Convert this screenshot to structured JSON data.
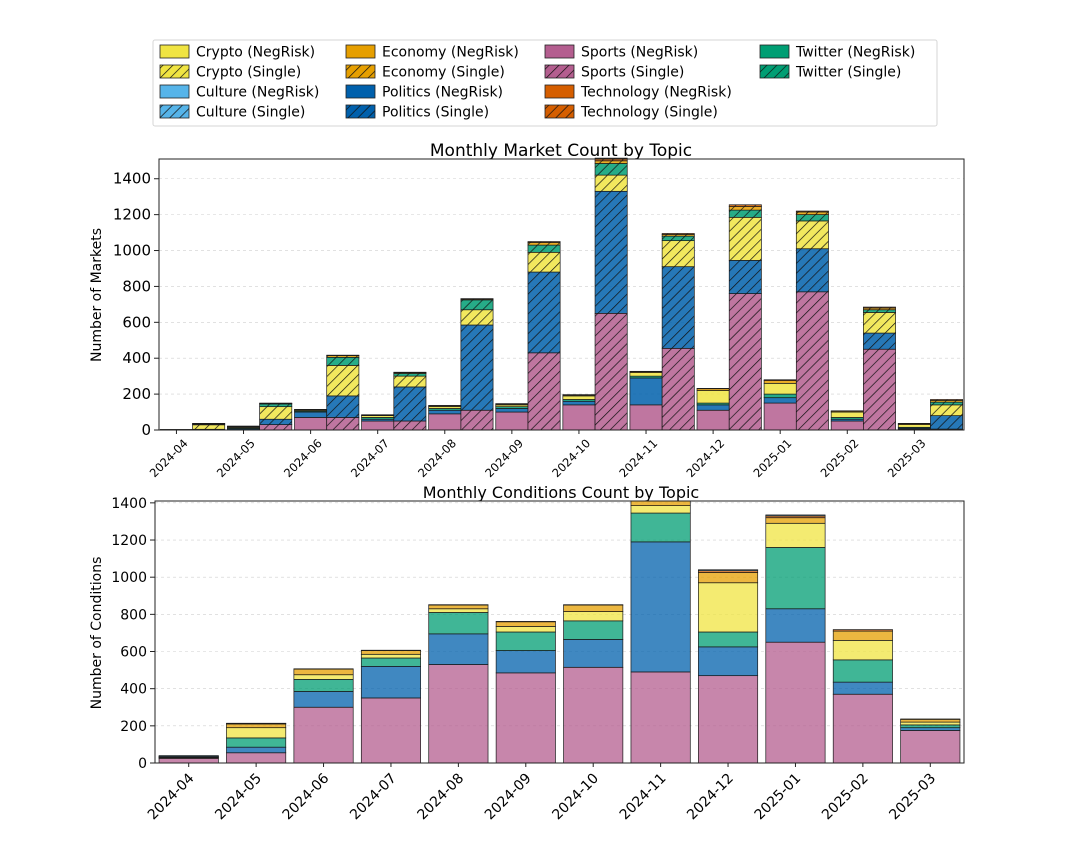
{
  "colors": {
    "crypto": "#F0E442",
    "culture": "#56B4E9",
    "economy": "#E69F00",
    "politics": "#0060AC",
    "sports": "#B45E8F",
    "technology": "#D55E00",
    "twitter": "#009E73"
  },
  "legend": [
    {
      "label": "Crypto (NegRisk)",
      "topic": "crypto",
      "hatch": false
    },
    {
      "label": "Crypto (Single)",
      "topic": "crypto",
      "hatch": true
    },
    {
      "label": "Culture (NegRisk)",
      "topic": "culture",
      "hatch": false
    },
    {
      "label": "Culture (Single)",
      "topic": "culture",
      "hatch": true
    },
    {
      "label": "Economy (NegRisk)",
      "topic": "economy",
      "hatch": false
    },
    {
      "label": "Economy (Single)",
      "topic": "economy",
      "hatch": true
    },
    {
      "label": "Politics (NegRisk)",
      "topic": "politics",
      "hatch": false
    },
    {
      "label": "Politics (Single)",
      "topic": "politics",
      "hatch": true
    },
    {
      "label": "Sports (NegRisk)",
      "topic": "sports",
      "hatch": false
    },
    {
      "label": "Sports (Single)",
      "topic": "sports",
      "hatch": true
    },
    {
      "label": "Technology (NegRisk)",
      "topic": "technology",
      "hatch": false
    },
    {
      "label": "Technology (Single)",
      "topic": "technology",
      "hatch": true
    },
    {
      "label": "Twitter (NegRisk)",
      "topic": "twitter",
      "hatch": false
    },
    {
      "label": "Twitter (Single)",
      "topic": "twitter",
      "hatch": true
    }
  ],
  "chart_data": [
    {
      "type": "bar",
      "stacked": true,
      "grouped": [
        "NegRisk",
        "Single"
      ],
      "title": "Monthly Market Count by Topic",
      "xlabel": "",
      "ylabel": "Number of Markets",
      "ylim": [
        0,
        1510
      ],
      "yticks": [
        0,
        200,
        400,
        600,
        800,
        1000,
        1200,
        1400
      ],
      "categories": [
        "2024-04",
        "2024-05",
        "2024-06",
        "2024-07",
        "2024-08",
        "2024-09",
        "2024-10",
        "2024-11",
        "2024-12",
        "2025-01",
        "2025-02",
        "2025-03"
      ],
      "series": [
        {
          "name": "Sports (NegRisk)",
          "topic": "sports",
          "group": "NegRisk",
          "values": [
            0,
            2,
            70,
            50,
            90,
            100,
            140,
            140,
            110,
            150,
            50,
            5
          ]
        },
        {
          "name": "Politics (NegRisk)",
          "topic": "politics",
          "group": "NegRisk",
          "values": [
            2,
            5,
            30,
            10,
            20,
            20,
            20,
            150,
            30,
            30,
            10,
            5
          ]
        },
        {
          "name": "Twitter (NegRisk)",
          "topic": "twitter",
          "group": "NegRisk",
          "values": [
            0,
            5,
            5,
            10,
            10,
            10,
            10,
            10,
            10,
            20,
            10,
            5
          ]
        },
        {
          "name": "Crypto (NegRisk)",
          "topic": "crypto",
          "group": "NegRisk",
          "values": [
            0,
            5,
            5,
            10,
            10,
            10,
            20,
            20,
            70,
            60,
            30,
            15
          ]
        },
        {
          "name": "Economy (NegRisk)",
          "topic": "economy",
          "group": "NegRisk",
          "values": [
            0,
            3,
            3,
            3,
            5,
            5,
            5,
            5,
            10,
            15,
            5,
            5
          ]
        },
        {
          "name": "Technology (NegRisk)",
          "topic": "technology",
          "group": "NegRisk",
          "values": [
            1,
            2,
            2,
            2,
            2,
            2,
            2,
            2,
            2,
            5,
            2,
            2
          ]
        },
        {
          "name": "Sports (Single)",
          "topic": "sports",
          "group": "Single",
          "values": [
            2,
            30,
            70,
            50,
            110,
            430,
            650,
            455,
            760,
            770,
            450,
            5
          ]
        },
        {
          "name": "Politics (Single)",
          "topic": "politics",
          "group": "Single",
          "values": [
            2,
            30,
            120,
            190,
            475,
            450,
            680,
            455,
            185,
            240,
            90,
            75
          ]
        },
        {
          "name": "Crypto (Single)",
          "topic": "crypto",
          "group": "Single",
          "values": [
            25,
            70,
            170,
            60,
            85,
            110,
            90,
            145,
            240,
            155,
            115,
            60
          ]
        },
        {
          "name": "Twitter (Single)",
          "topic": "twitter",
          "group": "Single",
          "values": [
            4,
            15,
            45,
            15,
            55,
            40,
            65,
            25,
            40,
            35,
            15,
            15
          ]
        },
        {
          "name": "Economy (Single)",
          "topic": "economy",
          "group": "Single",
          "values": [
            2,
            3,
            10,
            5,
            5,
            15,
            15,
            10,
            20,
            15,
            10,
            10
          ]
        },
        {
          "name": "Technology (Single)",
          "topic": "technology",
          "group": "Single",
          "values": [
            2,
            2,
            2,
            2,
            2,
            5,
            15,
            5,
            10,
            5,
            5,
            5
          ]
        }
      ]
    },
    {
      "type": "bar",
      "stacked": true,
      "title": "Monthly Conditions Count by Topic",
      "xlabel": "",
      "ylabel": "Number of Conditions",
      "ylim": [
        0,
        1410
      ],
      "yticks": [
        0,
        200,
        400,
        600,
        800,
        1000,
        1200,
        1400
      ],
      "categories": [
        "2024-04",
        "2024-05",
        "2024-06",
        "2024-07",
        "2024-08",
        "2024-09",
        "2024-10",
        "2024-11",
        "2024-12",
        "2025-01",
        "2025-02",
        "2025-03"
      ],
      "series": [
        {
          "name": "Sports",
          "topic": "sports",
          "values": [
            25,
            55,
            300,
            350,
            530,
            485,
            515,
            490,
            470,
            650,
            370,
            175
          ]
        },
        {
          "name": "Politics",
          "topic": "politics",
          "values": [
            2,
            30,
            85,
            170,
            165,
            120,
            150,
            700,
            155,
            180,
            65,
            15
          ]
        },
        {
          "name": "Twitter",
          "topic": "twitter",
          "values": [
            2,
            50,
            65,
            45,
            115,
            100,
            100,
            155,
            80,
            330,
            120,
            15
          ]
        },
        {
          "name": "Crypto",
          "topic": "crypto",
          "values": [
            2,
            55,
            25,
            20,
            20,
            30,
            50,
            40,
            265,
            130,
            105,
            15
          ]
        },
        {
          "name": "Economy",
          "topic": "economy",
          "values": [
            2,
            20,
            30,
            20,
            20,
            25,
            35,
            30,
            55,
            30,
            50,
            15
          ]
        },
        {
          "name": "Technology",
          "topic": "technology",
          "values": [
            2,
            2,
            2,
            2,
            2,
            2,
            2,
            2,
            10,
            10,
            8,
            2
          ]
        },
        {
          "name": "Culture",
          "topic": "culture",
          "values": [
            5,
            2,
            0,
            0,
            0,
            0,
            0,
            0,
            5,
            5,
            0,
            0
          ]
        }
      ]
    }
  ]
}
